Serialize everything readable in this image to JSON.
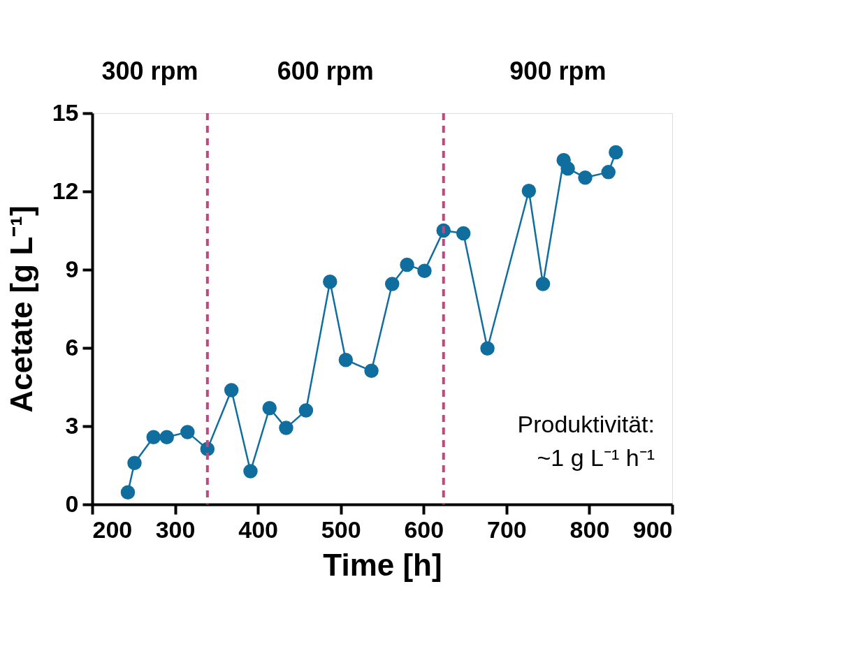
{
  "chart_data": {
    "type": "line",
    "xlabel": "Time [h]",
    "ylabel": "Acetate [g L⁻¹]",
    "x": [
      243,
      251,
      274,
      290,
      315,
      339,
      368,
      391,
      414,
      434,
      458,
      487,
      506,
      537,
      562,
      580,
      601,
      624,
      648,
      677,
      727,
      744,
      769,
      774,
      795,
      823,
      832
    ],
    "series": [
      {
        "color": "#0f6e9e",
        "values": [
          0.46,
          1.59,
          2.58,
          2.58,
          2.77,
          2.12,
          4.38,
          1.27,
          3.69,
          2.93,
          3.6,
          8.54,
          5.54,
          5.12,
          8.45,
          9.19,
          8.95,
          10.5,
          10.39,
          5.98,
          12.02,
          8.45,
          13.2,
          12.88,
          12.53,
          12.74,
          13.5
        ]
      }
    ],
    "marker": "circle",
    "line_style": "solid",
    "grid": false,
    "xlim": [
      200,
      900
    ],
    "xticks": [
      200,
      300,
      400,
      500,
      600,
      700,
      800,
      900
    ],
    "ylim": [
      0,
      15
    ],
    "yticks": [
      0,
      3,
      6,
      9,
      12,
      15
    ],
    "ref_lines": [
      {
        "axis": "x",
        "value": 339,
        "color": "#c0487f",
        "line_style": "dashed"
      },
      {
        "axis": "x",
        "value": 624,
        "color": "#c0487f",
        "line_style": "dashed"
      }
    ],
    "annotations": [
      "300 rpm",
      "600 rpm",
      "900 rpm",
      "Produktivität:\n~1 g L⁻¹ h⁻¹"
    ]
  }
}
